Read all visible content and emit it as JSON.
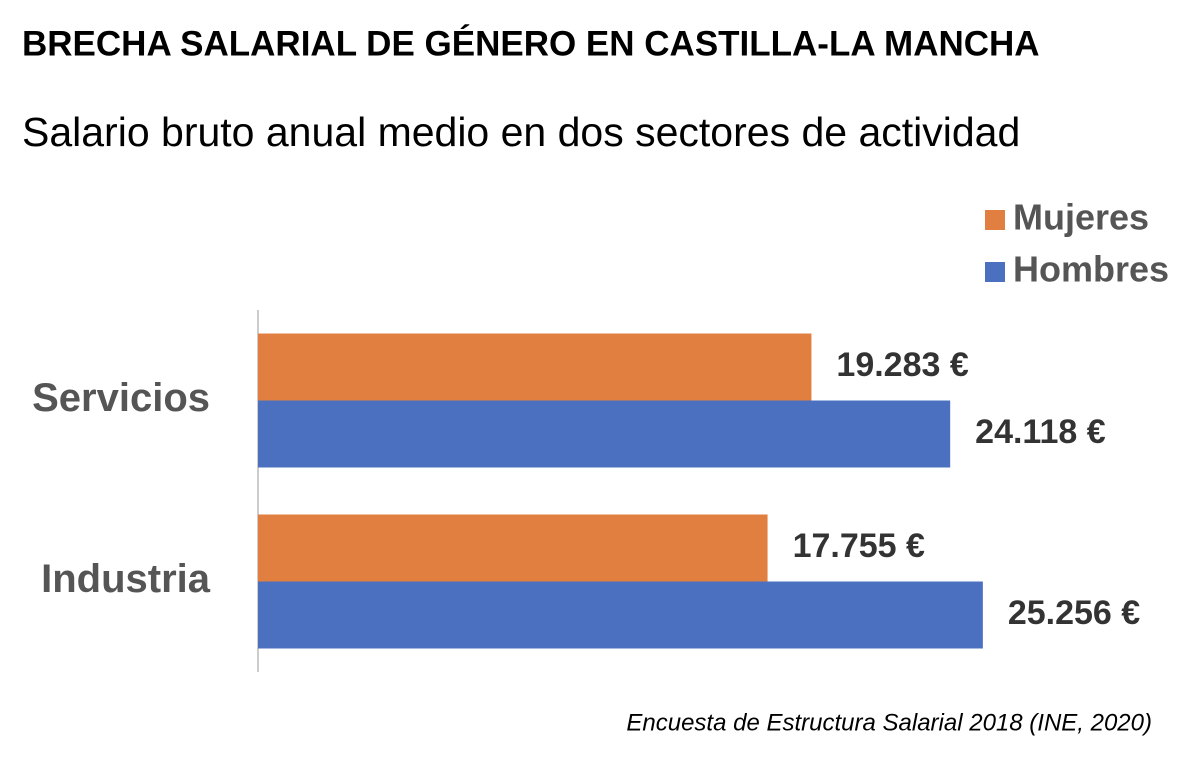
{
  "chart_data": {
    "type": "hbar",
    "title": "BRECHA SALARIAL DE GÉNERO EN CASTILLA-LA MANCHA",
    "subtitle": "Salario bruto anual medio en dos sectores de actividad",
    "source": "Encuesta de Estructura Salarial 2018 (INE, 2020)",
    "categories": [
      "Servicios",
      "Industria"
    ],
    "series": [
      {
        "name": "Mujeres",
        "color": "#e07f40",
        "values": [
          19283,
          17755
        ],
        "value_labels": [
          "19.283 €",
          "17.755 €"
        ]
      },
      {
        "name": "Hombres",
        "color": "#4b70c0",
        "values": [
          24118,
          25256
        ],
        "value_labels": [
          "24.118 €",
          "25.256 €"
        ]
      }
    ],
    "xlim": [
      0,
      30000
    ],
    "legend": "top-right"
  }
}
